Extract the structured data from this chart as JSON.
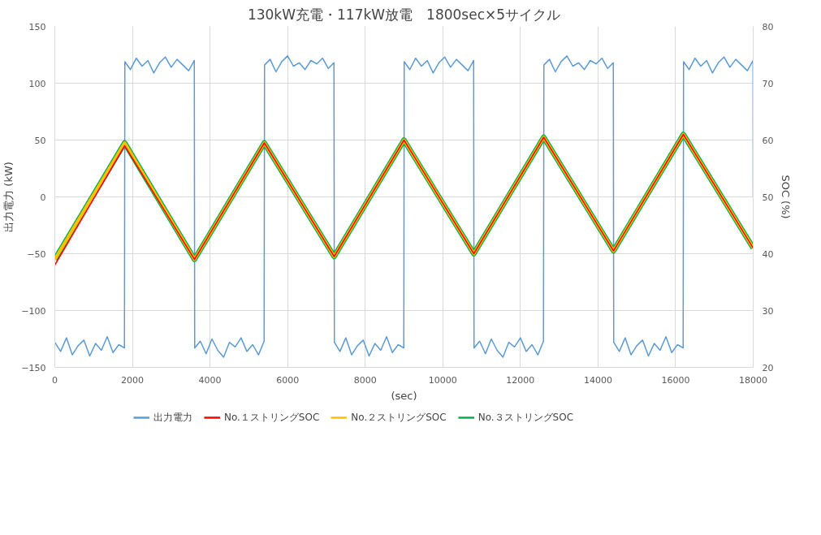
{
  "chart_data": {
    "type": "line",
    "title": "130kW充電・117kW放電　1800sec×5サイクル",
    "ylabel": "出力電力 (kW)",
    "y2label": "SOC (%)",
    "xlabel": "(sec)",
    "xlim": [
      0,
      18000
    ],
    "xticks": [
      0,
      2000,
      4000,
      6000,
      8000,
      10000,
      12000,
      14000,
      16000,
      18000
    ],
    "ylim": [
      -150,
      150
    ],
    "yticks": [
      -150,
      -100,
      -50,
      0,
      50,
      100,
      150
    ],
    "y2lim": [
      20,
      80
    ],
    "y2ticks": [
      20,
      30,
      40,
      50,
      60,
      70,
      80
    ],
    "grid": true,
    "legend": "bottom",
    "marker": "none",
    "line_style": "solid",
    "x": [
      0,
      150,
      300,
      450,
      600,
      750,
      900,
      1050,
      1200,
      1350,
      1500,
      1650,
      1795,
      1805,
      1950,
      2100,
      2250,
      2400,
      2550,
      2700,
      2850,
      3000,
      3150,
      3300,
      3450,
      3595,
      3605,
      3750,
      3900,
      4050,
      4200,
      4350,
      4500,
      4650,
      4800,
      4950,
      5100,
      5250,
      5395,
      5405,
      5550,
      5700,
      5850,
      6000,
      6150,
      6300,
      6450,
      6600,
      6750,
      6900,
      7050,
      7195,
      7205,
      7350,
      7500,
      7650,
      7800,
      7950,
      8100,
      8250,
      8400,
      8550,
      8700,
      8850,
      8995,
      9005,
      9150,
      9300,
      9450,
      9600,
      9750,
      9900,
      10050,
      10200,
      10350,
      10500,
      10650,
      10795,
      10805,
      10950,
      11100,
      11250,
      11400,
      11550,
      11700,
      11850,
      12000,
      12150,
      12300,
      12450,
      12595,
      12605,
      12750,
      12900,
      13050,
      13200,
      13350,
      13500,
      13650,
      13800,
      13950,
      14100,
      14250,
      14395,
      14405,
      14550,
      14700,
      14850,
      15000,
      15150,
      15300,
      15450,
      15600,
      15750,
      15900,
      16050,
      16195,
      16205,
      16350,
      16500,
      16650,
      16800,
      16950,
      17100,
      17250,
      17400,
      17550,
      17700,
      17850,
      17995,
      18000
    ],
    "series": [
      {
        "name": "出力電力",
        "color": "#5b9bd5",
        "values": [
          -128,
          -136,
          -124,
          -139,
          -131,
          -126,
          -140,
          -129,
          -135,
          -123,
          -137,
          -130,
          -133,
          119,
          112,
          122,
          115,
          120,
          109,
          118,
          123,
          114,
          121,
          116,
          111,
          120,
          -133,
          -127,
          -138,
          -125,
          -135,
          -141,
          -128,
          -132,
          -124,
          -136,
          -130,
          -139,
          -127,
          116,
          121,
          110,
          119,
          124,
          115,
          118,
          112,
          120,
          117,
          122,
          113,
          118,
          -128,
          -136,
          -124,
          -139,
          -131,
          -126,
          -140,
          -129,
          -135,
          -123,
          -137,
          -130,
          -133,
          119,
          112,
          122,
          115,
          120,
          109,
          118,
          123,
          114,
          121,
          116,
          111,
          120,
          -133,
          -127,
          -138,
          -125,
          -135,
          -141,
          -128,
          -132,
          -124,
          -136,
          -130,
          -139,
          -127,
          116,
          121,
          110,
          119,
          124,
          115,
          118,
          112,
          120,
          117,
          122,
          113,
          118,
          -128,
          -136,
          -124,
          -139,
          -131,
          -126,
          -140,
          -129,
          -135,
          -123,
          -137,
          -130,
          -133,
          119,
          112,
          122,
          115,
          120,
          109,
          118,
          123,
          114,
          121,
          116,
          111,
          120,
          0
        ]
      },
      {
        "name": "No.１ストリングSOC",
        "color": "#ff0000",
        "axis": "y2",
        "x": [
          0,
          1800,
          3600,
          5400,
          7200,
          9000,
          10800,
          12600,
          14400,
          16200,
          18000
        ],
        "values": [
          38,
          59,
          39,
          59.5,
          39.5,
          60,
          40,
          60.5,
          40.5,
          61,
          41
        ]
      },
      {
        "name": "No.２ストリングSOC",
        "color": "#ffc000",
        "axis": "y2",
        "x": [
          0,
          1800,
          3600,
          5400,
          7200,
          9000,
          10800,
          12600,
          14400,
          16200,
          18000
        ],
        "values": [
          39,
          59.5,
          39,
          59.5,
          39.5,
          60,
          40,
          60.5,
          40.5,
          61,
          41
        ]
      },
      {
        "name": "No.３ストリングSOC",
        "color": "#00b050",
        "axis": "y2",
        "x": [
          0,
          1800,
          3600,
          5400,
          7200,
          9000,
          10800,
          12600,
          14400,
          16200,
          18000
        ],
        "values": [
          39,
          59.5,
          39,
          59.5,
          39.5,
          60,
          40,
          60.5,
          40.5,
          61,
          41
        ]
      }
    ]
  }
}
